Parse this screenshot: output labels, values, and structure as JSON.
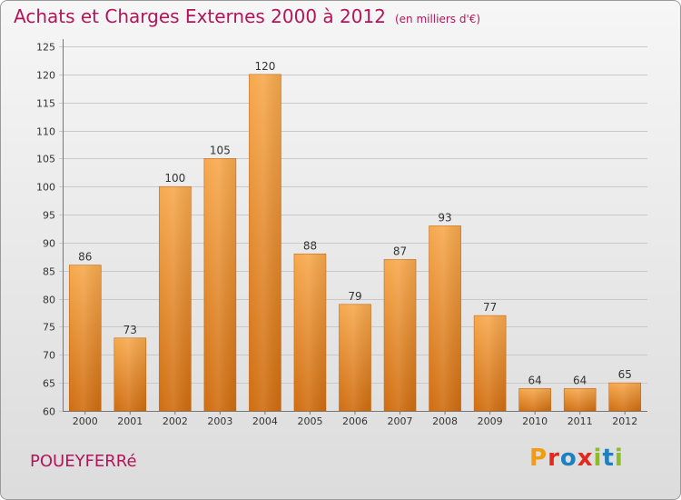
{
  "header": {
    "title": "Achats et Charges Externes 2000 à 2012",
    "unit": "(en milliers d'€)"
  },
  "footer": {
    "city": "POUEYFERRé",
    "brand": "Proxiti",
    "brand_colors": [
      "#f29c11",
      "#e2291c",
      "#1e7fc1",
      "#e2291c",
      "#8bbd27",
      "#1e7fc1",
      "#8bbd27"
    ]
  },
  "colors": {
    "title": "#b2165a",
    "bar_light": "#f7a94e",
    "bar_dark": "#d06d10"
  },
  "chart_data": {
    "type": "bar",
    "title": "Achats et Charges Externes 2000 à 2012",
    "subtitle": "(en milliers d'€)",
    "categories": [
      "2000",
      "2001",
      "2002",
      "2003",
      "2004",
      "2005",
      "2006",
      "2007",
      "2008",
      "2009",
      "2010",
      "2011",
      "2012"
    ],
    "values": [
      86,
      73,
      100,
      105,
      120,
      88,
      79,
      87,
      93,
      77,
      64,
      64,
      65
    ],
    "ylim": [
      60,
      125
    ],
    "yticks": [
      60,
      65,
      70,
      75,
      80,
      85,
      90,
      95,
      100,
      105,
      110,
      115,
      120,
      125
    ],
    "grid": true,
    "xlabel": "",
    "ylabel": ""
  }
}
